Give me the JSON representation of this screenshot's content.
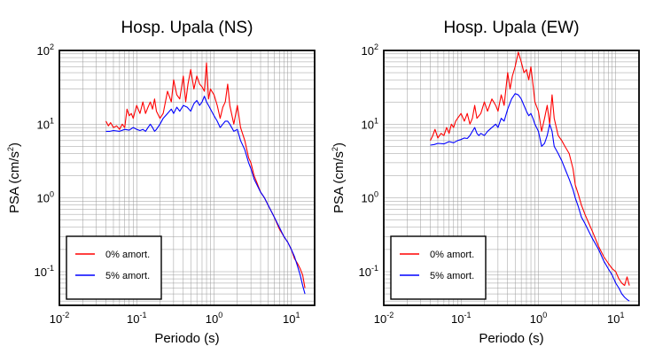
{
  "chart_data": [
    {
      "type": "line",
      "title": "Hosp. Upala (NS)",
      "xlabel": "Periodo (s)",
      "ylabel": "PSA (cm/s",
      "ylabel_sup": "2",
      "ylabel_close": ")",
      "xscale": "log",
      "yscale": "log",
      "xlim": [
        0.01,
        20
      ],
      "ylim": [
        0.035,
        100
      ],
      "grid": true,
      "legend_position": "bottom-left",
      "x_ticks": [
        {
          "base": "10",
          "exp": "-2"
        },
        {
          "base": "10",
          "exp": "-1"
        },
        {
          "base": "10",
          "exp": "0"
        },
        {
          "base": "10",
          "exp": "1"
        }
      ],
      "y_ticks": [
        {
          "base": "10",
          "exp": "-1"
        },
        {
          "base": "10",
          "exp": "0"
        },
        {
          "base": "10",
          "exp": "1"
        },
        {
          "base": "10",
          "exp": "2"
        }
      ],
      "series": [
        {
          "name": "0% amort.",
          "color": "#ff0000",
          "points": [
            [
              0.04,
              11
            ],
            [
              0.043,
              9.5
            ],
            [
              0.046,
              10.5
            ],
            [
              0.05,
              9
            ],
            [
              0.055,
              9.5
            ],
            [
              0.06,
              8.5
            ],
            [
              0.065,
              10
            ],
            [
              0.07,
              9
            ],
            [
              0.075,
              16
            ],
            [
              0.08,
              13
            ],
            [
              0.085,
              14
            ],
            [
              0.09,
              12
            ],
            [
              0.1,
              18
            ],
            [
              0.11,
              14
            ],
            [
              0.12,
              20
            ],
            [
              0.13,
              14
            ],
            [
              0.14,
              17
            ],
            [
              0.15,
              20
            ],
            [
              0.16,
              16
            ],
            [
              0.17,
              22
            ],
            [
              0.18,
              15
            ],
            [
              0.2,
              12
            ],
            [
              0.22,
              14
            ],
            [
              0.25,
              28
            ],
            [
              0.28,
              20
            ],
            [
              0.3,
              40
            ],
            [
              0.33,
              25
            ],
            [
              0.36,
              22
            ],
            [
              0.4,
              45
            ],
            [
              0.43,
              20
            ],
            [
              0.46,
              35
            ],
            [
              0.5,
              55
            ],
            [
              0.55,
              30
            ],
            [
              0.6,
              45
            ],
            [
              0.65,
              35
            ],
            [
              0.7,
              32
            ],
            [
              0.75,
              28
            ],
            [
              0.8,
              68
            ],
            [
              0.85,
              22
            ],
            [
              0.9,
              30
            ],
            [
              1.0,
              25
            ],
            [
              1.1,
              18
            ],
            [
              1.2,
              12
            ],
            [
              1.3,
              17
            ],
            [
              1.4,
              20
            ],
            [
              1.5,
              35
            ],
            [
              1.6,
              18
            ],
            [
              1.8,
              10
            ],
            [
              2.0,
              18
            ],
            [
              2.2,
              9
            ],
            [
              2.5,
              6
            ],
            [
              2.8,
              3.5
            ],
            [
              3.0,
              3
            ],
            [
              3.3,
              2
            ],
            [
              3.6,
              1.6
            ],
            [
              4.0,
              1.2
            ],
            [
              4.5,
              1
            ],
            [
              5,
              0.8
            ],
            [
              6,
              0.55
            ],
            [
              7,
              0.38
            ],
            [
              8,
              0.3
            ],
            [
              9,
              0.25
            ],
            [
              10,
              0.2
            ],
            [
              11,
              0.15
            ],
            [
              12,
              0.13
            ],
            [
              13,
              0.11
            ],
            [
              14,
              0.09
            ],
            [
              15,
              0.06
            ]
          ]
        },
        {
          "name": "5% amort.",
          "color": "#0000ff",
          "points": [
            [
              0.04,
              8
            ],
            [
              0.045,
              8
            ],
            [
              0.05,
              8.2
            ],
            [
              0.06,
              8
            ],
            [
              0.07,
              8.5
            ],
            [
              0.08,
              8.3
            ],
            [
              0.09,
              9
            ],
            [
              0.1,
              8.5
            ],
            [
              0.11,
              8.2
            ],
            [
              0.12,
              8.5
            ],
            [
              0.13,
              8
            ],
            [
              0.14,
              9
            ],
            [
              0.15,
              10
            ],
            [
              0.16,
              9
            ],
            [
              0.17,
              8
            ],
            [
              0.18,
              8.5
            ],
            [
              0.2,
              10
            ],
            [
              0.22,
              12
            ],
            [
              0.25,
              14
            ],
            [
              0.28,
              16
            ],
            [
              0.3,
              14
            ],
            [
              0.33,
              17
            ],
            [
              0.36,
              15
            ],
            [
              0.4,
              18
            ],
            [
              0.45,
              17
            ],
            [
              0.5,
              15
            ],
            [
              0.55,
              19
            ],
            [
              0.6,
              21
            ],
            [
              0.65,
              18
            ],
            [
              0.7,
              20
            ],
            [
              0.75,
              24
            ],
            [
              0.8,
              20
            ],
            [
              0.85,
              18
            ],
            [
              0.9,
              16
            ],
            [
              1.0,
              13
            ],
            [
              1.1,
              11
            ],
            [
              1.2,
              9
            ],
            [
              1.3,
              10
            ],
            [
              1.4,
              11
            ],
            [
              1.5,
              11
            ],
            [
              1.6,
              10
            ],
            [
              1.8,
              8
            ],
            [
              2.0,
              8.5
            ],
            [
              2.2,
              6
            ],
            [
              2.5,
              4.5
            ],
            [
              2.8,
              3
            ],
            [
              3.0,
              2.5
            ],
            [
              3.3,
              1.8
            ],
            [
              3.6,
              1.5
            ],
            [
              4.0,
              1.2
            ],
            [
              4.5,
              1
            ],
            [
              5,
              0.8
            ],
            [
              6,
              0.55
            ],
            [
              7,
              0.4
            ],
            [
              8,
              0.3
            ],
            [
              9,
              0.25
            ],
            [
              10,
              0.2
            ],
            [
              11,
              0.16
            ],
            [
              12,
              0.12
            ],
            [
              13,
              0.09
            ],
            [
              14,
              0.065
            ],
            [
              15,
              0.05
            ]
          ]
        }
      ]
    },
    {
      "type": "line",
      "title": "Hosp. Upala (EW)",
      "xlabel": "Periodo (s)",
      "ylabel": "PSA (cm/s",
      "ylabel_sup": "2",
      "ylabel_close": ")",
      "xscale": "log",
      "yscale": "log",
      "xlim": [
        0.01,
        20
      ],
      "ylim": [
        0.035,
        100
      ],
      "grid": true,
      "legend_position": "bottom-left",
      "x_ticks": [
        {
          "base": "10",
          "exp": "-2"
        },
        {
          "base": "10",
          "exp": "-1"
        },
        {
          "base": "10",
          "exp": "0"
        },
        {
          "base": "10",
          "exp": "1"
        }
      ],
      "y_ticks": [
        {
          "base": "10",
          "exp": "-1"
        },
        {
          "base": "10",
          "exp": "0"
        },
        {
          "base": "10",
          "exp": "1"
        },
        {
          "base": "10",
          "exp": "2"
        }
      ],
      "series": [
        {
          "name": "0% amort.",
          "color": "#ff0000",
          "points": [
            [
              0.04,
              6
            ],
            [
              0.043,
              7
            ],
            [
              0.046,
              8.5
            ],
            [
              0.05,
              6.5
            ],
            [
              0.055,
              7.5
            ],
            [
              0.06,
              7
            ],
            [
              0.065,
              9
            ],
            [
              0.07,
              7.5
            ],
            [
              0.075,
              10
            ],
            [
              0.08,
              9
            ],
            [
              0.085,
              11
            ],
            [
              0.09,
              12
            ],
            [
              0.1,
              14
            ],
            [
              0.11,
              11
            ],
            [
              0.12,
              14
            ],
            [
              0.13,
              10
            ],
            [
              0.14,
              12
            ],
            [
              0.15,
              18
            ],
            [
              0.16,
              12
            ],
            [
              0.18,
              14
            ],
            [
              0.2,
              20
            ],
            [
              0.22,
              15
            ],
            [
              0.25,
              22
            ],
            [
              0.28,
              18
            ],
            [
              0.3,
              15
            ],
            [
              0.33,
              25
            ],
            [
              0.36,
              18
            ],
            [
              0.4,
              50
            ],
            [
              0.43,
              30
            ],
            [
              0.46,
              45
            ],
            [
              0.5,
              60
            ],
            [
              0.55,
              95
            ],
            [
              0.6,
              70
            ],
            [
              0.65,
              50
            ],
            [
              0.7,
              55
            ],
            [
              0.75,
              40
            ],
            [
              0.8,
              60
            ],
            [
              0.85,
              35
            ],
            [
              0.9,
              20
            ],
            [
              1.0,
              15
            ],
            [
              1.1,
              8
            ],
            [
              1.2,
              12
            ],
            [
              1.3,
              18
            ],
            [
              1.4,
              10
            ],
            [
              1.5,
              25
            ],
            [
              1.6,
              12
            ],
            [
              1.8,
              7
            ],
            [
              2.0,
              6
            ],
            [
              2.2,
              5
            ],
            [
              2.5,
              4
            ],
            [
              2.8,
              2.5
            ],
            [
              3.0,
              1.5
            ],
            [
              3.3,
              1.1
            ],
            [
              3.6,
              0.8
            ],
            [
              4.0,
              0.6
            ],
            [
              4.5,
              0.45
            ],
            [
              5,
              0.35
            ],
            [
              6,
              0.22
            ],
            [
              7,
              0.16
            ],
            [
              8,
              0.13
            ],
            [
              9,
              0.11
            ],
            [
              10,
              0.1
            ],
            [
              11,
              0.08
            ],
            [
              12,
              0.07
            ],
            [
              13,
              0.065
            ],
            [
              14,
              0.085
            ],
            [
              15,
              0.065
            ]
          ]
        },
        {
          "name": "5% amort.",
          "color": "#0000ff",
          "points": [
            [
              0.04,
              5.2
            ],
            [
              0.045,
              5.3
            ],
            [
              0.05,
              5.5
            ],
            [
              0.06,
              5.4
            ],
            [
              0.07,
              5.8
            ],
            [
              0.08,
              5.6
            ],
            [
              0.09,
              6
            ],
            [
              0.1,
              6.2
            ],
            [
              0.11,
              6.5
            ],
            [
              0.12,
              6.4
            ],
            [
              0.13,
              7
            ],
            [
              0.14,
              8
            ],
            [
              0.15,
              9
            ],
            [
              0.16,
              7.5
            ],
            [
              0.17,
              7
            ],
            [
              0.18,
              7.5
            ],
            [
              0.2,
              7
            ],
            [
              0.22,
              8
            ],
            [
              0.25,
              9
            ],
            [
              0.28,
              10
            ],
            [
              0.3,
              9
            ],
            [
              0.33,
              12
            ],
            [
              0.36,
              11
            ],
            [
              0.4,
              16
            ],
            [
              0.45,
              22
            ],
            [
              0.5,
              26
            ],
            [
              0.55,
              25
            ],
            [
              0.6,
              22
            ],
            [
              0.65,
              18
            ],
            [
              0.7,
              15
            ],
            [
              0.75,
              13
            ],
            [
              0.8,
              14
            ],
            [
              0.85,
              12
            ],
            [
              0.9,
              10
            ],
            [
              1.0,
              8
            ],
            [
              1.1,
              5
            ],
            [
              1.2,
              5.5
            ],
            [
              1.3,
              7
            ],
            [
              1.4,
              10
            ],
            [
              1.5,
              8
            ],
            [
              1.6,
              5
            ],
            [
              1.8,
              4
            ],
            [
              2.0,
              3.2
            ],
            [
              2.2,
              2.5
            ],
            [
              2.5,
              1.8
            ],
            [
              2.8,
              1.3
            ],
            [
              3.0,
              1
            ],
            [
              3.3,
              0.75
            ],
            [
              3.6,
              0.55
            ],
            [
              4.0,
              0.45
            ],
            [
              4.5,
              0.35
            ],
            [
              5,
              0.28
            ],
            [
              6,
              0.2
            ],
            [
              7,
              0.14
            ],
            [
              8,
              0.11
            ],
            [
              9,
              0.09
            ],
            [
              10,
              0.07
            ],
            [
              11,
              0.06
            ],
            [
              12,
              0.05
            ],
            [
              13,
              0.045
            ],
            [
              14,
              0.042
            ],
            [
              15,
              0.04
            ]
          ]
        }
      ]
    }
  ]
}
